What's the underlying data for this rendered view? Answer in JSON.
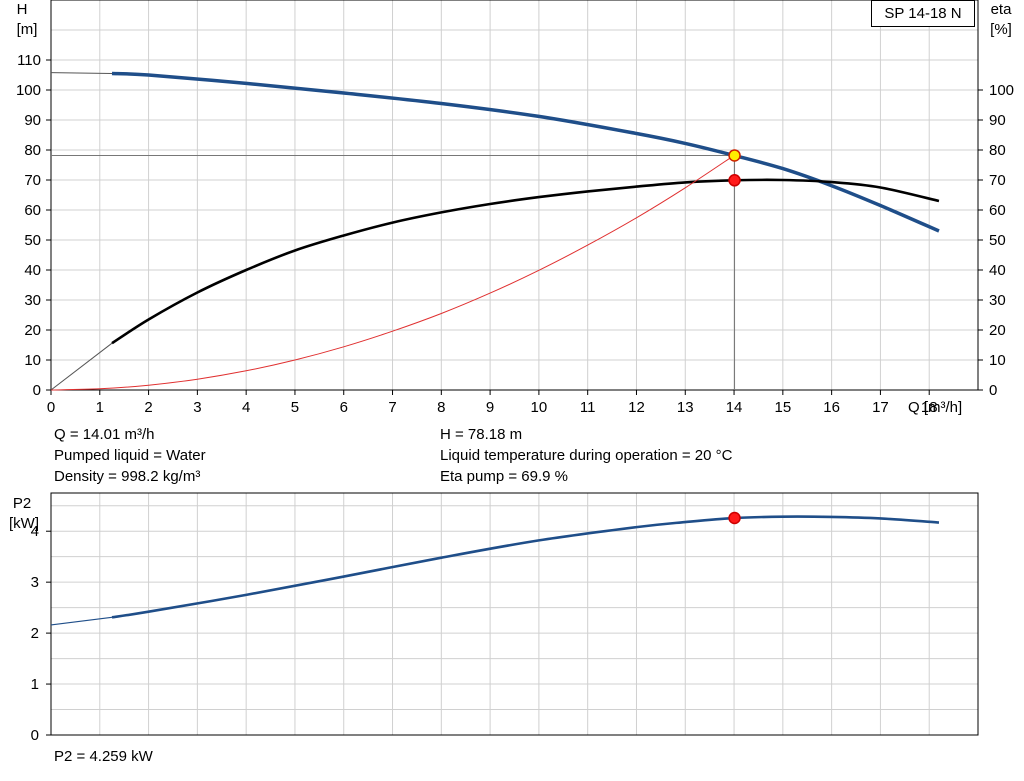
{
  "chart_data": [
    {
      "type": "line",
      "legend": "SP 14-18 N",
      "xlabel": "Q [m³/h]",
      "ylabel_left": [
        "H",
        "[m]"
      ],
      "ylabel_right": [
        "eta",
        "[%]"
      ],
      "xlim": [
        0,
        19
      ],
      "ylim": [
        0,
        110
      ],
      "x_ticks": [
        0,
        1,
        2,
        3,
        4,
        5,
        6,
        7,
        8,
        9,
        10,
        11,
        12,
        13,
        14,
        15,
        16,
        17,
        18
      ],
      "y_ticks_left": [
        0,
        10,
        20,
        30,
        40,
        50,
        60,
        70,
        80,
        90,
        100,
        110
      ],
      "y_ticks_right": [
        0,
        10,
        20,
        30,
        40,
        50,
        60,
        70,
        80,
        90,
        100
      ],
      "grid": true,
      "series": [
        {
          "role": "head",
          "color": "#1f4e89",
          "extrapolated_x": [
            0,
            1.25
          ],
          "extrapolated_y": [
            105.8,
            105.5
          ],
          "x": [
            1.25,
            2,
            4,
            6,
            8,
            10,
            12,
            13,
            14,
            15,
            16,
            17,
            18.2
          ],
          "y": [
            105.5,
            105.0,
            102.2,
            99.0,
            95.5,
            91.2,
            85.5,
            82.2,
            78.2,
            73.8,
            68.1,
            61.5,
            53.0
          ]
        },
        {
          "role": "efficiency",
          "color": "#000000",
          "extrapolated_x": [
            0,
            1.25
          ],
          "extrapolated_y": [
            0,
            15.6
          ],
          "x": [
            1.25,
            2,
            3,
            4,
            5,
            6,
            7,
            8,
            9,
            10,
            11,
            12,
            13,
            14,
            15,
            16,
            17,
            18.2
          ],
          "y": [
            15.6,
            23.5,
            32.5,
            40.0,
            46.5,
            51.5,
            55.8,
            59.2,
            62.0,
            64.3,
            66.2,
            67.8,
            69.2,
            69.9,
            70.0,
            69.3,
            67.5,
            63.0
          ]
        },
        {
          "role": "system",
          "color": "#e03030",
          "x": [
            0,
            1,
            2,
            3,
            4,
            5,
            6,
            7,
            8,
            9,
            10,
            11,
            12,
            13,
            14
          ],
          "y": [
            0,
            0.4,
            1.6,
            3.6,
            6.4,
            10.0,
            14.4,
            19.6,
            25.5,
            32.3,
            39.9,
            48.3,
            57.4,
            67.4,
            78.2
          ]
        }
      ],
      "markers": [
        {
          "x": 14.01,
          "y": 78.18,
          "fill": "#ffee00",
          "stroke": "#cc2200"
        },
        {
          "x": 14.01,
          "y": 69.9,
          "fill": "#ff1a1a",
          "stroke": "#cc0000"
        }
      ]
    },
    {
      "type": "line",
      "ylabel": [
        "P2",
        "[kW]"
      ],
      "xlim": [
        0,
        19
      ],
      "ylim": [
        0,
        4.75
      ],
      "y_ticks": [
        0,
        1,
        2,
        3,
        4
      ],
      "grid": true,
      "series": [
        {
          "role": "power",
          "color": "#1f4e89",
          "extrapolated_x": [
            0,
            1.25
          ],
          "extrapolated_y": [
            2.16,
            2.31
          ],
          "x": [
            1.25,
            2,
            4,
            6,
            8,
            10,
            12,
            13,
            14,
            15,
            16,
            17,
            18.2
          ],
          "y": [
            2.31,
            2.42,
            2.75,
            3.11,
            3.48,
            3.82,
            4.08,
            4.18,
            4.259,
            4.285,
            4.28,
            4.25,
            4.17
          ]
        }
      ],
      "markers": [
        {
          "x": 14.01,
          "y": 4.259,
          "fill": "#ff1a1a",
          "stroke": "#cc0000"
        }
      ]
    }
  ],
  "info": {
    "q": "Q = 14.01 m³/h",
    "liquid": "Pumped liquid = Water",
    "density": "Density = 998.2 kg/m³",
    "h": "H = 78.18 m",
    "temperature": "Liquid temperature during operation = 20 °C",
    "eta": "Eta pump = 69.9 %",
    "p2": "P2 = 4.259 kW"
  }
}
